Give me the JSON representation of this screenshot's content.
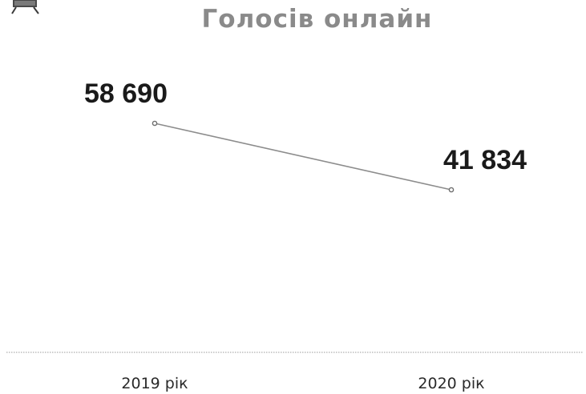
{
  "icon": "presentation-board-icon",
  "chart_data": {
    "type": "line",
    "title": "Голосів онлайн",
    "categories": [
      "2019 рік",
      "2020 рік"
    ],
    "values": [
      58690,
      41834
    ],
    "data_labels": [
      "58 690",
      "41 834"
    ],
    "xlabel": "",
    "ylabel": "",
    "grid": false,
    "line_color": "#8c8c8c",
    "marker_color": "#6e6e6e",
    "axis_color": "#9a9a9a"
  }
}
